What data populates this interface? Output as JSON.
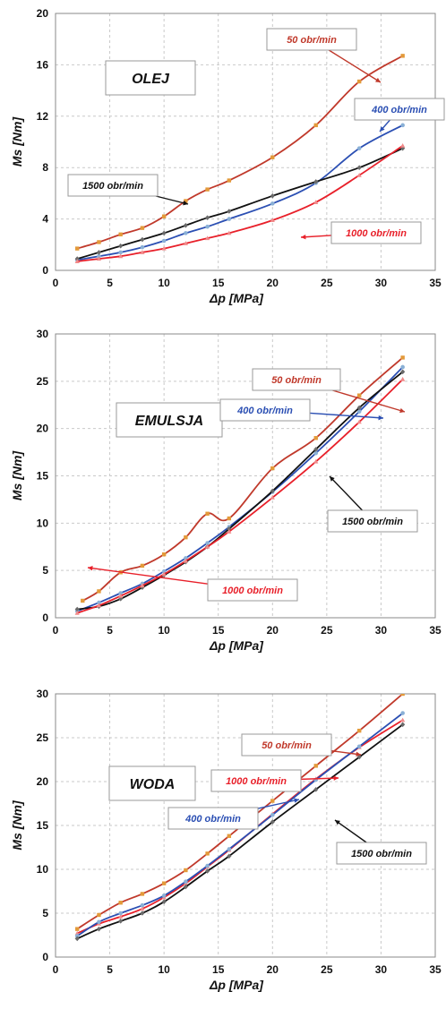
{
  "chart_data": [
    {
      "type": "line",
      "panel_label": "OLEJ",
      "xlabel": "Δp  [MPa]",
      "ylabel": "Ms [Nm]",
      "xlim": [
        0,
        35
      ],
      "ylim": [
        0,
        20
      ],
      "xticks": [
        0,
        5,
        10,
        15,
        20,
        25,
        30,
        35
      ],
      "yticks": [
        0,
        4,
        8,
        12,
        16,
        20
      ],
      "grid": true,
      "series": [
        {
          "name": "50 obr/min",
          "color": "#c0392b",
          "marker": "square",
          "marker_color": "#e39a3a",
          "x": [
            2,
            4,
            6,
            8,
            10,
            12,
            14,
            16,
            20,
            24,
            28,
            32
          ],
          "y": [
            1.7,
            2.2,
            2.8,
            3.3,
            4.2,
            5.4,
            6.3,
            7.0,
            8.8,
            11.3,
            14.7,
            16.7
          ]
        },
        {
          "name": "400 obr/min",
          "color": "#2b4fb3",
          "marker": "circle",
          "marker_color": "#8ab0d6",
          "x": [
            2,
            4,
            6,
            8,
            10,
            12,
            14,
            16,
            20,
            24,
            28,
            32
          ],
          "y": [
            0.8,
            1.1,
            1.4,
            1.8,
            2.3,
            2.9,
            3.4,
            4.0,
            5.2,
            6.8,
            9.5,
            11.3
          ]
        },
        {
          "name": "1500 obr/min",
          "color": "#111111",
          "marker": "diamond",
          "marker_color": "#6a6a6a",
          "x": [
            2,
            4,
            6,
            8,
            10,
            12,
            14,
            16,
            20,
            24,
            28,
            32
          ],
          "y": [
            0.9,
            1.4,
            1.9,
            2.4,
            2.9,
            3.5,
            4.1,
            4.6,
            5.8,
            6.9,
            8.0,
            9.5
          ]
        },
        {
          "name": "1000 obr/min",
          "color": "#e8202a",
          "marker": "triangle",
          "marker_color": "#f08a8a",
          "x": [
            2,
            4,
            6,
            8,
            10,
            12,
            14,
            16,
            20,
            24,
            28,
            32
          ],
          "y": [
            0.7,
            0.9,
            1.1,
            1.4,
            1.7,
            2.1,
            2.5,
            2.9,
            3.9,
            5.3,
            7.4,
            9.7
          ]
        }
      ]
    },
    {
      "type": "line",
      "panel_label": "EMULSJA",
      "xlabel": "Δp  [MPa]",
      "ylabel": "Ms [Nm]",
      "xlim": [
        0,
        35
      ],
      "ylim": [
        0,
        30
      ],
      "xticks": [
        0,
        5,
        10,
        15,
        20,
        25,
        30,
        35
      ],
      "yticks": [
        0,
        5,
        10,
        15,
        20,
        25,
        30
      ],
      "grid": true,
      "series": [
        {
          "name": "50 obr/min",
          "color": "#c0392b",
          "marker": "square",
          "marker_color": "#e39a3a",
          "x": [
            2.5,
            4,
            6,
            8,
            10,
            12,
            14,
            16,
            20,
            24,
            28,
            32
          ],
          "y": [
            1.8,
            2.8,
            4.8,
            5.5,
            6.7,
            8.5,
            11.0,
            10.5,
            15.8,
            19.0,
            23.5,
            27.5
          ]
        },
        {
          "name": "400 obr/min",
          "color": "#2b4fb3",
          "marker": "circle",
          "marker_color": "#8ab0d6",
          "x": [
            2,
            4,
            6,
            8,
            10,
            12,
            14,
            16,
            20,
            24,
            28,
            32
          ],
          "y": [
            0.7,
            1.6,
            2.6,
            3.6,
            4.9,
            6.3,
            7.9,
            9.6,
            13.3,
            17.4,
            21.8,
            26.5
          ]
        },
        {
          "name": "1500 obr/min",
          "color": "#111111",
          "marker": "diamond",
          "marker_color": "#6a6a6a",
          "x": [
            2,
            4,
            6,
            8,
            10,
            12,
            14,
            16,
            20,
            24,
            28,
            32
          ],
          "y": [
            0.9,
            1.2,
            2.0,
            3.2,
            4.5,
            5.9,
            7.5,
            9.4,
            13.4,
            17.8,
            22.2,
            26.0
          ]
        },
        {
          "name": "1000 obr/min",
          "color": "#e8202a",
          "marker": "triangle",
          "marker_color": "#f08a8a",
          "x": [
            2,
            4,
            6,
            8,
            10,
            12,
            14,
            16,
            20,
            24,
            28,
            32
          ],
          "y": [
            0.5,
            1.3,
            2.3,
            3.4,
            4.6,
            6.0,
            7.5,
            9.1,
            12.7,
            16.5,
            20.7,
            25.2
          ]
        }
      ]
    },
    {
      "type": "line",
      "panel_label": "WODA",
      "xlabel": "Δp  [MPa]",
      "ylabel": "Ms [Nm]",
      "xlim": [
        0,
        35
      ],
      "ylim": [
        0,
        30
      ],
      "xticks": [
        0,
        5,
        10,
        15,
        20,
        25,
        30,
        35
      ],
      "yticks": [
        0,
        5,
        10,
        15,
        20,
        25,
        30
      ],
      "grid": true,
      "series": [
        {
          "name": "50 obr/min",
          "color": "#c0392b",
          "marker": "square",
          "marker_color": "#e39a3a",
          "x": [
            2,
            4,
            6,
            8,
            10,
            12,
            14,
            16,
            20,
            24,
            28,
            32
          ],
          "y": [
            3.2,
            4.8,
            6.2,
            7.2,
            8.4,
            9.9,
            11.8,
            13.8,
            17.8,
            21.8,
            25.8,
            30.0
          ]
        },
        {
          "name": "1000 obr/min",
          "color": "#e8202a",
          "marker": "triangle",
          "marker_color": "#f08a8a",
          "x": [
            2,
            4,
            6,
            8,
            10,
            12,
            14,
            16,
            20,
            24,
            28,
            32
          ],
          "y": [
            2.7,
            3.8,
            4.6,
            5.5,
            6.8,
            8.4,
            10.3,
            12.2,
            16.3,
            20.3,
            23.9,
            27.0
          ]
        },
        {
          "name": "400 obr/min",
          "color": "#2b4fb3",
          "marker": "circle",
          "marker_color": "#8ab0d6",
          "x": [
            2,
            4,
            6,
            8,
            10,
            12,
            14,
            16,
            20,
            24,
            28,
            32
          ],
          "y": [
            2.4,
            4.0,
            5.0,
            5.9,
            7.0,
            8.6,
            10.4,
            12.3,
            16.2,
            20.2,
            24.0,
            27.8
          ]
        },
        {
          "name": "1500 obr/min",
          "color": "#111111",
          "marker": "diamond",
          "marker_color": "#6a6a6a",
          "x": [
            2,
            4,
            6,
            8,
            10,
            12,
            14,
            16,
            20,
            24,
            28,
            32
          ],
          "y": [
            2.1,
            3.2,
            4.1,
            5.0,
            6.3,
            8.0,
            9.8,
            11.5,
            15.4,
            19.1,
            22.8,
            26.5
          ]
        }
      ]
    }
  ]
}
